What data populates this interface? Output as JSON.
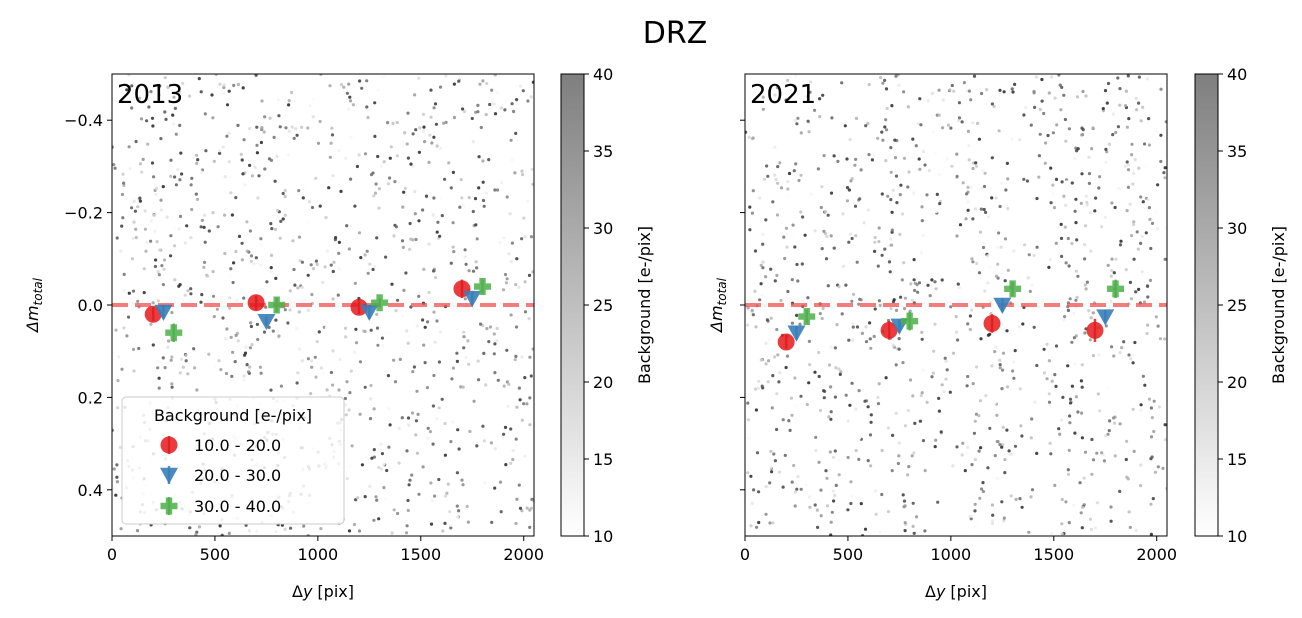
{
  "title": "DRZ",
  "chart_data": [
    {
      "type": "scatter",
      "panel_label": "2013",
      "xlabel_base": "Δ",
      "xlabel_var": "y",
      "xlabel_unit": "[pix]",
      "ylabel_base": "Δm",
      "ylabel_sub": "total",
      "xlim": [
        0,
        2050
      ],
      "ylim": [
        0.5,
        -0.5
      ],
      "xticks": [
        0,
        500,
        1000,
        1500,
        2000
      ],
      "xtick_labels": [
        "0",
        "500",
        "1000",
        "1500",
        "2000"
      ],
      "yticks": [
        -0.4,
        -0.2,
        0.0,
        0.2,
        0.4
      ],
      "ytick_labels": [
        "−0.4",
        "−0.2",
        "0.0",
        "0.2",
        "0.4"
      ],
      "reference_line": 0.0,
      "colorbar": {
        "label": "Background [e-/pix]",
        "range": [
          10,
          40
        ],
        "ticks": [
          "10",
          "15",
          "20",
          "25",
          "30",
          "35",
          "40"
        ]
      },
      "background_points": {
        "count": 1100,
        "seed": 2013,
        "x_range": [
          0,
          2050
        ],
        "y_spread": 0.5,
        "c_range": [
          10,
          40
        ]
      },
      "legend": {
        "title": "Background [e-/pix]",
        "entries": [
          "10.0 - 20.0",
          "20.0 - 30.0",
          "30.0 - 40.0"
        ],
        "position": "lower-left"
      },
      "series": [
        {
          "name": "10.0 - 20.0",
          "marker": "circle",
          "color": "#e41a1c",
          "x": [
            200,
            700,
            1200,
            1700
          ],
          "y": [
            0.02,
            -0.005,
            0.005,
            -0.035
          ],
          "yerr": [
            0.015,
            0.015,
            0.015,
            0.02
          ]
        },
        {
          "name": "20.0 - 30.0",
          "marker": "triangle-down",
          "color": "#377eb8",
          "x": [
            250,
            750,
            1250,
            1750
          ],
          "y": [
            0.015,
            0.035,
            0.015,
            -0.015
          ],
          "yerr": [
            0.015,
            0.01,
            0.015,
            0.015
          ]
        },
        {
          "name": "30.0 - 40.0",
          "marker": "plus",
          "color": "#4daf4a",
          "x": [
            300,
            800,
            1300,
            1800
          ],
          "y": [
            0.06,
            0.0,
            -0.005,
            -0.04
          ],
          "yerr": [
            0.02,
            0.015,
            0.01,
            0.015
          ]
        }
      ]
    },
    {
      "type": "scatter",
      "panel_label": "2021",
      "xlabel_base": "Δ",
      "xlabel_var": "y",
      "xlabel_unit": "[pix]",
      "ylabel_base": "Δm",
      "ylabel_sub": "total",
      "xlim": [
        0,
        2050
      ],
      "ylim": [
        0.5,
        -0.5
      ],
      "xticks": [
        0,
        500,
        1000,
        1500,
        2000
      ],
      "xtick_labels": [
        "0",
        "500",
        "1000",
        "1500",
        "2000"
      ],
      "yticks": [
        -0.4,
        -0.2,
        0.0,
        0.2,
        0.4
      ],
      "ytick_labels": [
        "",
        "",
        "",
        "",
        ""
      ],
      "reference_line": 0.0,
      "colorbar": {
        "label": "Background [e-/pix]",
        "range": [
          10,
          40
        ],
        "ticks": [
          "10",
          "15",
          "20",
          "25",
          "30",
          "35",
          "40"
        ]
      },
      "background_points": {
        "count": 1100,
        "seed": 2021,
        "x_range": [
          0,
          2050
        ],
        "y_spread": 0.5,
        "c_range": [
          10,
          40
        ]
      },
      "series": [
        {
          "name": "10.0 - 20.0",
          "marker": "circle",
          "color": "#e41a1c",
          "x": [
            200,
            700,
            1200,
            1700
          ],
          "y": [
            0.08,
            0.055,
            0.04,
            0.055
          ],
          "yerr": [
            0.015,
            0.02,
            0.02,
            0.025
          ]
        },
        {
          "name": "20.0 - 30.0",
          "marker": "triangle-down",
          "color": "#377eb8",
          "x": [
            250,
            750,
            1250,
            1750
          ],
          "y": [
            0.06,
            0.045,
            0.0,
            0.025
          ],
          "yerr": [
            0.015,
            0.015,
            0.015,
            0.015
          ]
        },
        {
          "name": "30.0 - 40.0",
          "marker": "plus",
          "color": "#4daf4a",
          "x": [
            300,
            800,
            1300,
            1800
          ],
          "y": [
            0.025,
            0.035,
            -0.035,
            -0.035
          ],
          "yerr": [
            0.015,
            0.02,
            0.015,
            0.02
          ]
        }
      ]
    }
  ]
}
